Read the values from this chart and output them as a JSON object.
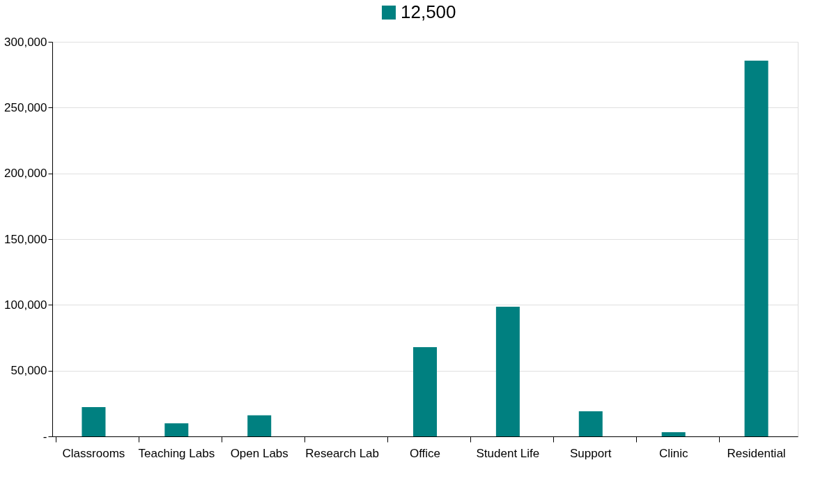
{
  "chart_data": {
    "type": "bar",
    "categories": [
      "Classrooms",
      "Teaching Labs",
      "Open Labs",
      "Research Lab",
      "Office",
      "Student Life",
      "Support",
      "Clinic",
      "Residential"
    ],
    "series": [
      {
        "name": "12,500",
        "color": "#008080",
        "values": [
          22300,
          10000,
          16000,
          0,
          67800,
          98600,
          19100,
          3200,
          285700
        ]
      }
    ],
    "ylim": [
      0,
      300000
    ],
    "yticks": [
      {
        "value": 0,
        "label": "-"
      },
      {
        "value": 50000,
        "label": "50,000"
      },
      {
        "value": 100000,
        "label": "100,000"
      },
      {
        "value": 150000,
        "label": "150,000"
      },
      {
        "value": 200000,
        "label": "200,000"
      },
      {
        "value": 250000,
        "label": "250,000"
      },
      {
        "value": 300000,
        "label": "300,000"
      }
    ],
    "grid": "y",
    "legend": "top"
  }
}
